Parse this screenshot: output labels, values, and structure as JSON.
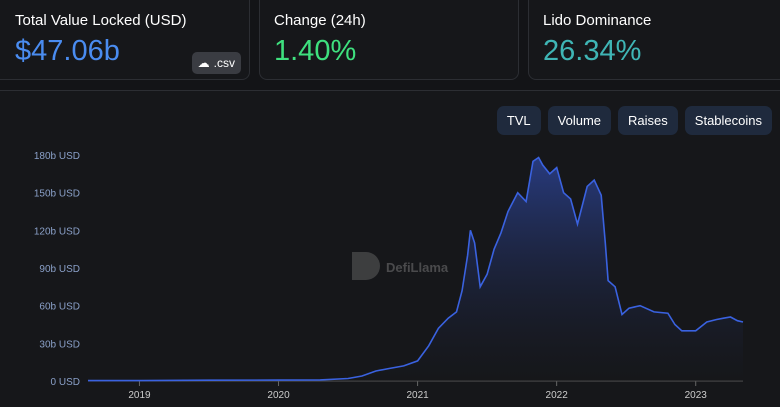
{
  "cards": [
    {
      "label": "Total Value Locked (USD)",
      "value": "$47.06b",
      "color": "#4a8cf0"
    },
    {
      "label": "Change (24h)",
      "value": "1.40%",
      "color": "#3ee07e"
    },
    {
      "label": "Lido Dominance",
      "value": "26.34%",
      "color": "#3fb5b5"
    }
  ],
  "csv_label": ".csv",
  "tabs": [
    "TVL",
    "Volume",
    "Raises",
    "Stablecoins"
  ],
  "watermark": "DefiLlama",
  "chart_data": {
    "type": "area",
    "title": "",
    "xlabel": "",
    "ylabel": "",
    "ylim": [
      0,
      180
    ],
    "xlim": [
      2018.63,
      2023.34
    ],
    "y_ticks": [
      {
        "v": 0,
        "label": "0 USD"
      },
      {
        "v": 30,
        "label": "30b USD"
      },
      {
        "v": 60,
        "label": "60b USD"
      },
      {
        "v": 90,
        "label": "90b USD"
      },
      {
        "v": 120,
        "label": "120b USD"
      },
      {
        "v": 150,
        "label": "150b USD"
      },
      {
        "v": 180,
        "label": "180b USD"
      }
    ],
    "x_ticks": [
      {
        "v": 2019,
        "label": "2019"
      },
      {
        "v": 2020,
        "label": "2020"
      },
      {
        "v": 2021,
        "label": "2021"
      },
      {
        "v": 2022,
        "label": "2022"
      },
      {
        "v": 2023,
        "label": "2023"
      }
    ],
    "series": [
      {
        "name": "TVL",
        "color": "#3a62e0",
        "points": [
          [
            2018.63,
            0.3
          ],
          [
            2019,
            0.3
          ],
          [
            2019.5,
            0.6
          ],
          [
            2020,
            0.7
          ],
          [
            2020.3,
            0.9
          ],
          [
            2020.5,
            2
          ],
          [
            2020.6,
            4
          ],
          [
            2020.7,
            8
          ],
          [
            2020.8,
            10
          ],
          [
            2020.9,
            12
          ],
          [
            2021.0,
            16
          ],
          [
            2021.08,
            28
          ],
          [
            2021.15,
            42
          ],
          [
            2021.22,
            50
          ],
          [
            2021.28,
            55
          ],
          [
            2021.32,
            72
          ],
          [
            2021.36,
            100
          ],
          [
            2021.38,
            120
          ],
          [
            2021.41,
            110
          ],
          [
            2021.45,
            75
          ],
          [
            2021.5,
            85
          ],
          [
            2021.55,
            105
          ],
          [
            2021.6,
            118
          ],
          [
            2021.65,
            135
          ],
          [
            2021.72,
            150
          ],
          [
            2021.78,
            143
          ],
          [
            2021.83,
            175
          ],
          [
            2021.87,
            178
          ],
          [
            2021.9,
            172
          ],
          [
            2021.95,
            165
          ],
          [
            2022.0,
            170
          ],
          [
            2022.05,
            150
          ],
          [
            2022.1,
            145
          ],
          [
            2022.15,
            125
          ],
          [
            2022.22,
            155
          ],
          [
            2022.27,
            160
          ],
          [
            2022.32,
            148
          ],
          [
            2022.35,
            110
          ],
          [
            2022.37,
            80
          ],
          [
            2022.42,
            75
          ],
          [
            2022.47,
            53
          ],
          [
            2022.52,
            58
          ],
          [
            2022.6,
            60
          ],
          [
            2022.7,
            55
          ],
          [
            2022.8,
            54
          ],
          [
            2022.85,
            45
          ],
          [
            2022.9,
            40
          ],
          [
            2023.0,
            40
          ],
          [
            2023.08,
            47
          ],
          [
            2023.15,
            49
          ],
          [
            2023.2,
            50
          ],
          [
            2023.25,
            51
          ],
          [
            2023.3,
            48
          ],
          [
            2023.34,
            47
          ]
        ]
      }
    ]
  }
}
